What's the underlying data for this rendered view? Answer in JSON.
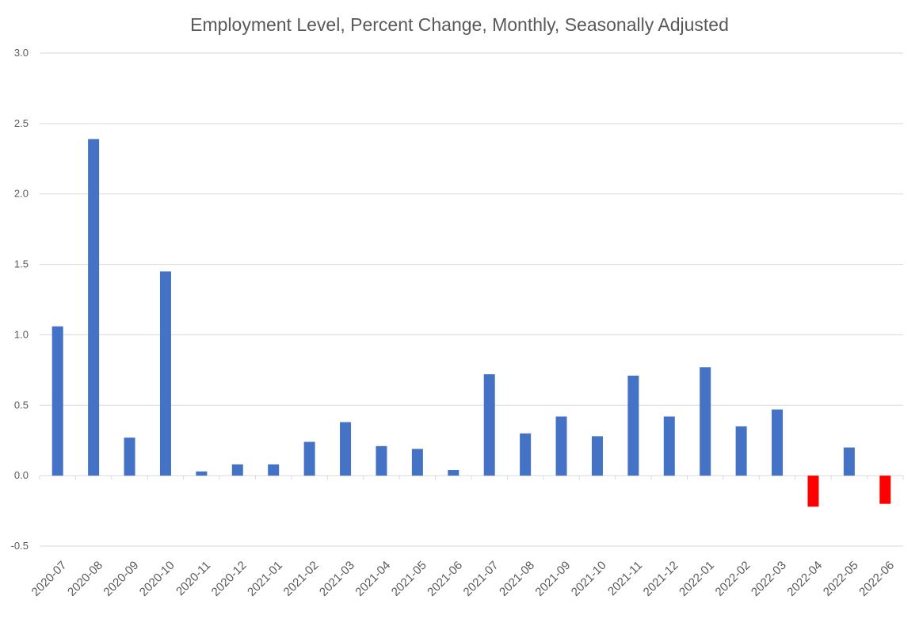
{
  "chart_data": {
    "type": "bar",
    "title": "Employment Level, Percent Change, Monthly, Seasonally Adjusted",
    "xlabel": "",
    "ylabel": "",
    "ylim": [
      -0.5,
      3.0
    ],
    "yticks": [
      "-0.5",
      "0.0",
      "0.5",
      "1.0",
      "1.5",
      "2.0",
      "2.5",
      "3.0"
    ],
    "grid": true,
    "legend": "none",
    "categories": [
      "2020-07",
      "2020-08",
      "2020-09",
      "2020-10",
      "2020-11",
      "2020-12",
      "2021-01",
      "2021-02",
      "2021-03",
      "2021-04",
      "2021-05",
      "2021-06",
      "2021-07",
      "2021-08",
      "2021-09",
      "2021-10",
      "2021-11",
      "2021-12",
      "2022-01",
      "2022-02",
      "2022-03",
      "2022-04",
      "2022-05",
      "2022-06"
    ],
    "values": [
      1.06,
      2.39,
      0.27,
      1.45,
      0.03,
      0.08,
      0.08,
      0.24,
      0.38,
      0.21,
      0.19,
      0.04,
      0.72,
      0.3,
      0.42,
      0.28,
      0.71,
      0.42,
      0.77,
      0.35,
      0.47,
      -0.22,
      0.2,
      -0.2
    ],
    "colors": {
      "positive": "#4472c4",
      "negative": "#ff0000",
      "grid": "#d9d9d9",
      "text": "#595959"
    }
  }
}
